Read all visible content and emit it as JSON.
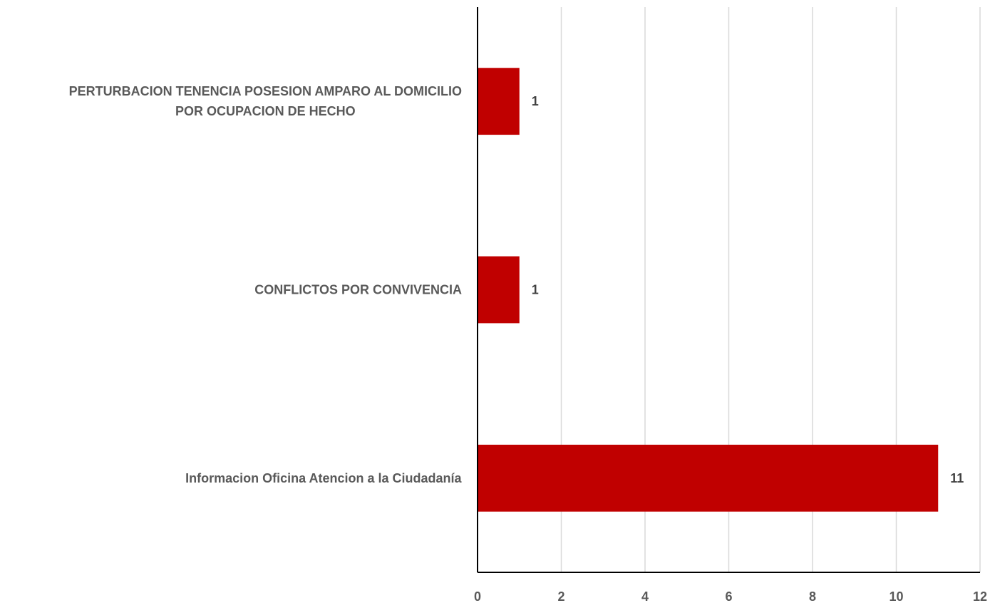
{
  "chart_data": {
    "type": "bar",
    "orientation": "horizontal",
    "title": "",
    "xlabel": "",
    "ylabel": "",
    "categories": [
      [
        "PERTURBACION  TENENCIA  POSESION  AMPARO AL DOMICILIO",
        "POR OCUPACION DE HECHO"
      ],
      [
        "CONFLICTOS POR CONVIVENCIA"
      ],
      [
        "Informacion Oficina Atencion a la Ciudadanía"
      ]
    ],
    "values": [
      1,
      1,
      11
    ],
    "data_labels": [
      "1",
      "1",
      "11"
    ],
    "xlim": [
      0,
      12
    ],
    "x_ticks": [
      0,
      2,
      4,
      6,
      8,
      10,
      12
    ],
    "x_tick_labels": [
      "0",
      "2",
      "4",
      "6",
      "8",
      "10",
      "12"
    ],
    "grid": "vertical",
    "legend": "none",
    "colors": {
      "bar": "#C00000",
      "grid": "#D9D9D9",
      "axis": "#000000",
      "text": "#595959",
      "data_label": "#404040"
    }
  }
}
